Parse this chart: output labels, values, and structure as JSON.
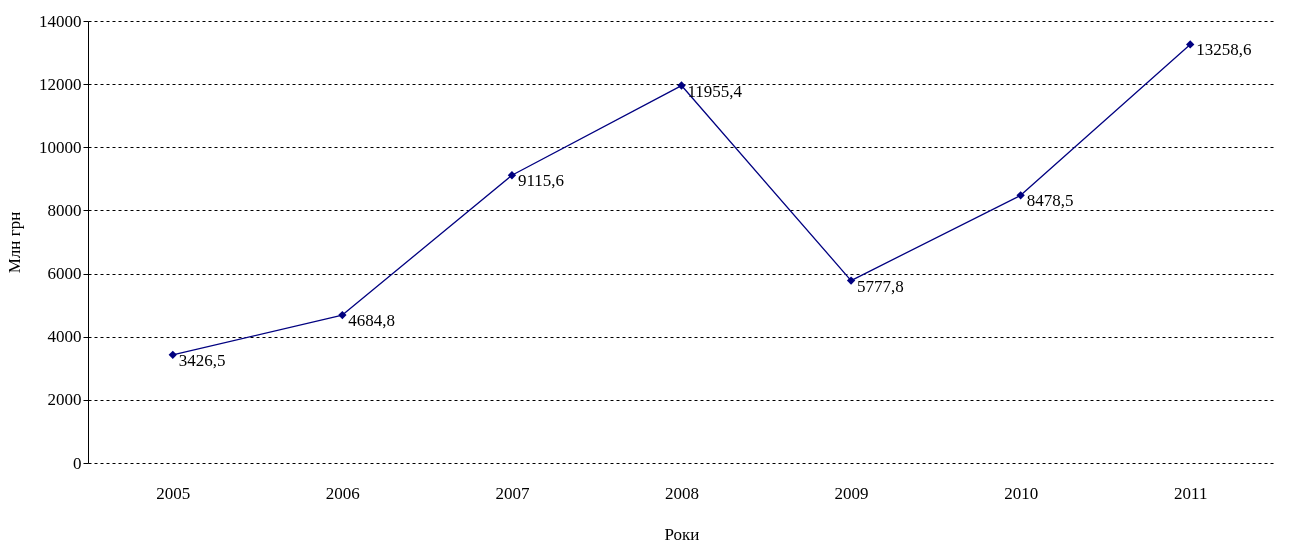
{
  "chart_data": {
    "type": "line",
    "xlabel": "Роки",
    "ylabel": "Млн грн",
    "categories": [
      "2005",
      "2006",
      "2007",
      "2008",
      "2009",
      "2010",
      "2011"
    ],
    "series": [
      {
        "color": "#000080",
        "values": [
          3426.5,
          4684.8,
          9115.6,
          11955.4,
          5777.8,
          8478.5,
          13258.6
        ],
        "value_labels": [
          "3426,5",
          "4684,8",
          "9115,6",
          "11955,4",
          "5777,8",
          "8478,5",
          "13258,6"
        ]
      }
    ],
    "ylim": [
      0,
      14000
    ],
    "yticks": [
      0,
      2000,
      4000,
      6000,
      8000,
      10000,
      12000,
      14000
    ],
    "grid": "y",
    "marker": "diamond",
    "line_style": "solid"
  }
}
